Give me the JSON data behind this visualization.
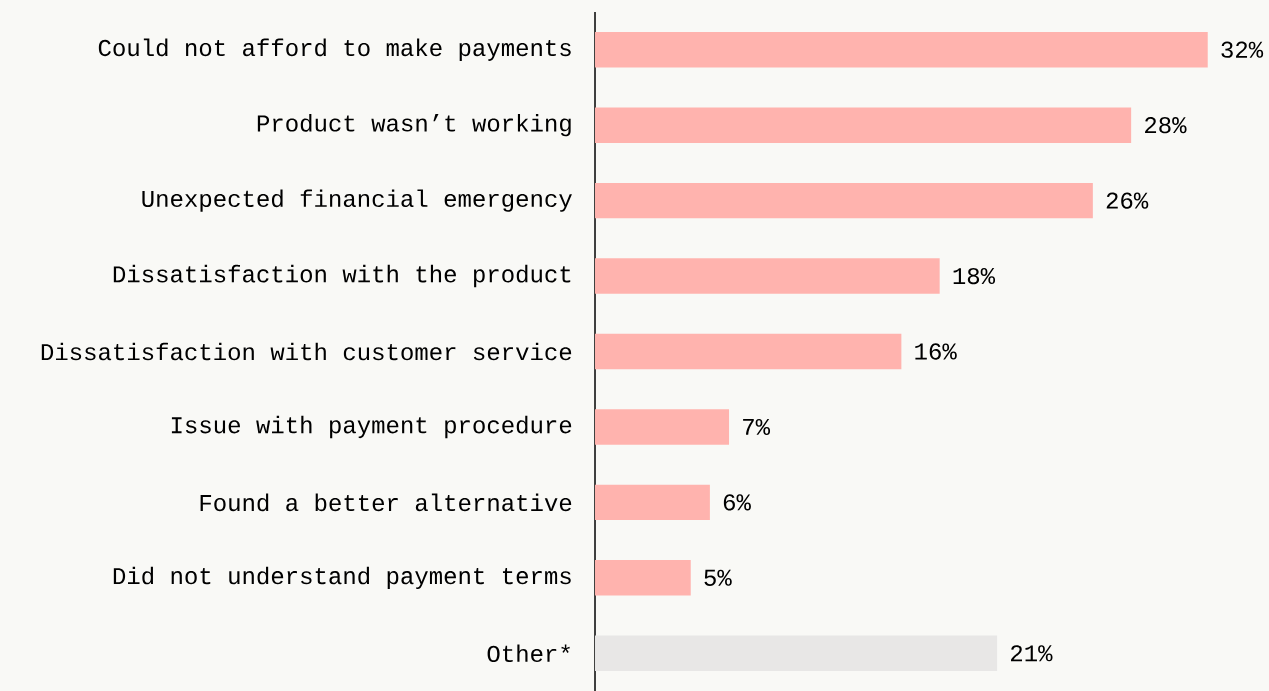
{
  "chart_data": {
    "type": "bar",
    "orientation": "horizontal",
    "categories": [
      "Could not afford to make payments",
      "Product wasn’t working",
      "Unexpected financial emergency",
      "Dissatisfaction with the product",
      "Dissatisfaction with customer service",
      "Issue with payment procedure",
      "Found a better alternative",
      "Did not understand payment terms",
      "Other*"
    ],
    "values": [
      32,
      28,
      26,
      18,
      16,
      7,
      6,
      5,
      21
    ],
    "colors": [
      "#ffb3ae",
      "#ffb3ae",
      "#ffb3ae",
      "#ffb3ae",
      "#ffb3ae",
      "#ffb3ae",
      "#ffb3ae",
      "#ffb3ae",
      "#e8e7e6"
    ],
    "value_labels": [
      "32%",
      "28%",
      "26%",
      "18%",
      "16%",
      "7%",
      "6%",
      "5%",
      "21%"
    ]
  }
}
